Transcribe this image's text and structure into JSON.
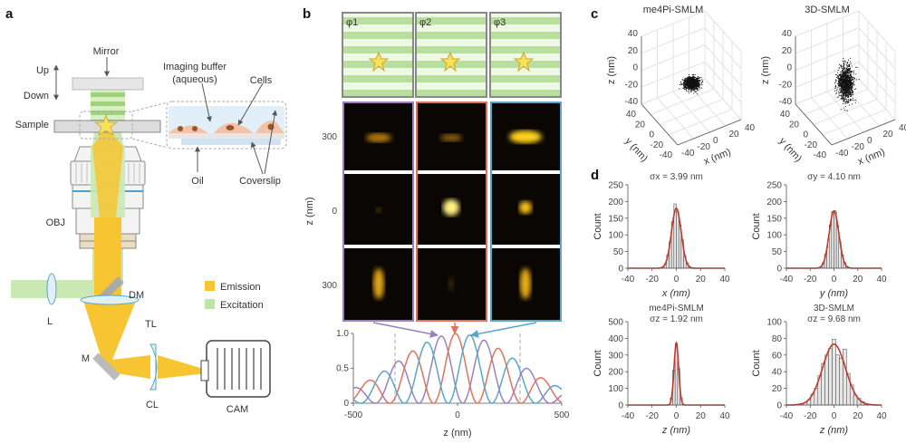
{
  "panels": {
    "a": "a",
    "b": "b",
    "c": "c",
    "d": "d"
  },
  "panel_a": {
    "labels": {
      "mirror": "Mirror",
      "up": "Up",
      "down": "Down",
      "sample": "Sample",
      "buffer_1": "Imaging buffer",
      "buffer_2": "(aqueous)",
      "cells": "Cells",
      "oil": "Oil",
      "coverslip": "Coverslip",
      "obj": "OBJ",
      "dm": "DM",
      "l": "L",
      "tl": "TL",
      "m": "M",
      "cl": "CL",
      "cam": "CAM"
    },
    "legend": [
      {
        "label": "Emission",
        "color": "#f7c531"
      },
      {
        "label": "Excitation",
        "color": "#bfe3a4"
      }
    ]
  },
  "panel_b": {
    "phases": [
      "φ1",
      "φ2",
      "φ3"
    ],
    "column_colors": [
      "#9b7fbf",
      "#e0735a",
      "#5aa6c8"
    ],
    "row_labels": [
      "300",
      "0",
      "300"
    ],
    "row_axis_label": "z (nm)"
  },
  "chart_data": [
    {
      "id": "b-profile",
      "type": "line",
      "xlabel": "z (nm)",
      "xlim": [
        -500,
        500
      ],
      "ylim": [
        0,
        1.0
      ],
      "xticks": [
        "-500",
        "0",
        "500"
      ],
      "yticks": [
        "0",
        "0.5",
        "1.0"
      ],
      "reference_lines_x": [
        -300,
        300
      ],
      "series": [
        {
          "color": "#9b7fbf",
          "phase_nm": -80
        },
        {
          "color": "#e0735a",
          "phase_nm": -10
        },
        {
          "color": "#5aa6c8",
          "phase_nm": 60
        }
      ],
      "period_nm": 210,
      "envelope_sigma_nm": 285
    },
    {
      "id": "c-me4pi",
      "type": "scatter",
      "title": "me4Pi-SMLM",
      "xlabel": "x (nm)",
      "ylabel": "y (nm)",
      "zlabel": "z (nm)",
      "range": [
        -40,
        40
      ],
      "ticks": [
        "40",
        "20",
        "0",
        "-20",
        "-40"
      ],
      "sigma_nm": {
        "x": 3.99,
        "y": 4.1,
        "z": 1.92
      }
    },
    {
      "id": "c-3d",
      "type": "scatter",
      "title": "3D-SMLM",
      "xlabel": "x (nm)",
      "ylabel": "y (nm)",
      "zlabel": "z (nm)",
      "range": [
        -40,
        40
      ],
      "ticks": [
        "40",
        "20",
        "0",
        "-20",
        "-40"
      ],
      "sigma_nm": {
        "x": 3.99,
        "y": 4.1,
        "z": 9.68
      }
    },
    {
      "id": "d-x",
      "type": "bar",
      "title": "σx = 3.99 nm",
      "xlabel": "x (nm)",
      "ylabel": "Count",
      "xlim": [
        -40,
        40
      ],
      "ylim": [
        0,
        250
      ],
      "yticks": [
        0,
        50,
        100,
        150,
        200,
        250
      ],
      "xticks": [
        -40,
        -20,
        0,
        20,
        40
      ],
      "bins": [
        -11,
        -9,
        -7,
        -5,
        -3,
        -1,
        1,
        3,
        5,
        7,
        9,
        11
      ],
      "values": [
        4,
        13,
        40,
        80,
        140,
        193,
        170,
        130,
        85,
        36,
        15,
        4
      ],
      "bin_width": 2,
      "fit_peak": 180,
      "fit_sigma": 3.99
    },
    {
      "id": "d-y",
      "type": "bar",
      "title": "σy = 4.10 nm",
      "xlabel": "y (nm)",
      "ylabel": "Count",
      "xlim": [
        -40,
        40
      ],
      "ylim": [
        0,
        250
      ],
      "yticks": [
        0,
        50,
        100,
        150,
        200,
        250
      ],
      "xticks": [
        -40,
        -20,
        0,
        20,
        40
      ],
      "bins": [
        -11,
        -9,
        -7,
        -5,
        -3,
        -1,
        1,
        3,
        5,
        7,
        9,
        11
      ],
      "values": [
        5,
        16,
        42,
        65,
        130,
        170,
        172,
        128,
        80,
        40,
        17,
        5
      ],
      "bin_width": 2,
      "fit_peak": 172,
      "fit_sigma": 4.1
    },
    {
      "id": "d-z-me4pi",
      "type": "bar",
      "title": "me4Pi-SMLM",
      "subtitle": "σz = 1.92 nm",
      "xlabel": "z (nm)",
      "ylabel": "Count",
      "xlim": [
        -40,
        40
      ],
      "ylim": [
        0,
        500
      ],
      "yticks": [
        0,
        100,
        200,
        300,
        400,
        500
      ],
      "xticks": [
        -40,
        -20,
        0,
        20,
        40
      ],
      "bins": [
        -6,
        -4,
        -2,
        0,
        2,
        4,
        6
      ],
      "values": [
        3,
        42,
        210,
        370,
        220,
        40,
        3
      ],
      "bin_width": 2,
      "fit_peak": 370,
      "fit_sigma": 1.92
    },
    {
      "id": "d-z-3d",
      "type": "bar",
      "title": "3D-SMLM",
      "subtitle": "σz = 9.68 nm",
      "xlabel": "z (nm)",
      "ylabel": "Count",
      "xlim": [
        -40,
        40
      ],
      "ylim": [
        0,
        100
      ],
      "yticks": [
        0,
        20,
        40,
        60,
        80,
        100
      ],
      "xticks": [
        -40,
        -20,
        0,
        20,
        40
      ],
      "bins": [
        -30,
        -27,
        -24,
        -21,
        -18,
        -15,
        -12,
        -9,
        -6,
        -3,
        0,
        3,
        6,
        9,
        12,
        15,
        18,
        21,
        24,
        27,
        30
      ],
      "values": [
        1,
        2,
        3,
        6,
        13,
        20,
        35,
        50,
        60,
        68,
        79,
        60,
        56,
        67,
        38,
        24,
        12,
        8,
        4,
        2,
        1
      ],
      "bin_width": 3,
      "fit_peak": 73,
      "fit_sigma": 9.68
    }
  ],
  "colors": {
    "fit": "#c0392b",
    "bar_fill": "#e6e6e6",
    "bar_stroke": "#444"
  }
}
